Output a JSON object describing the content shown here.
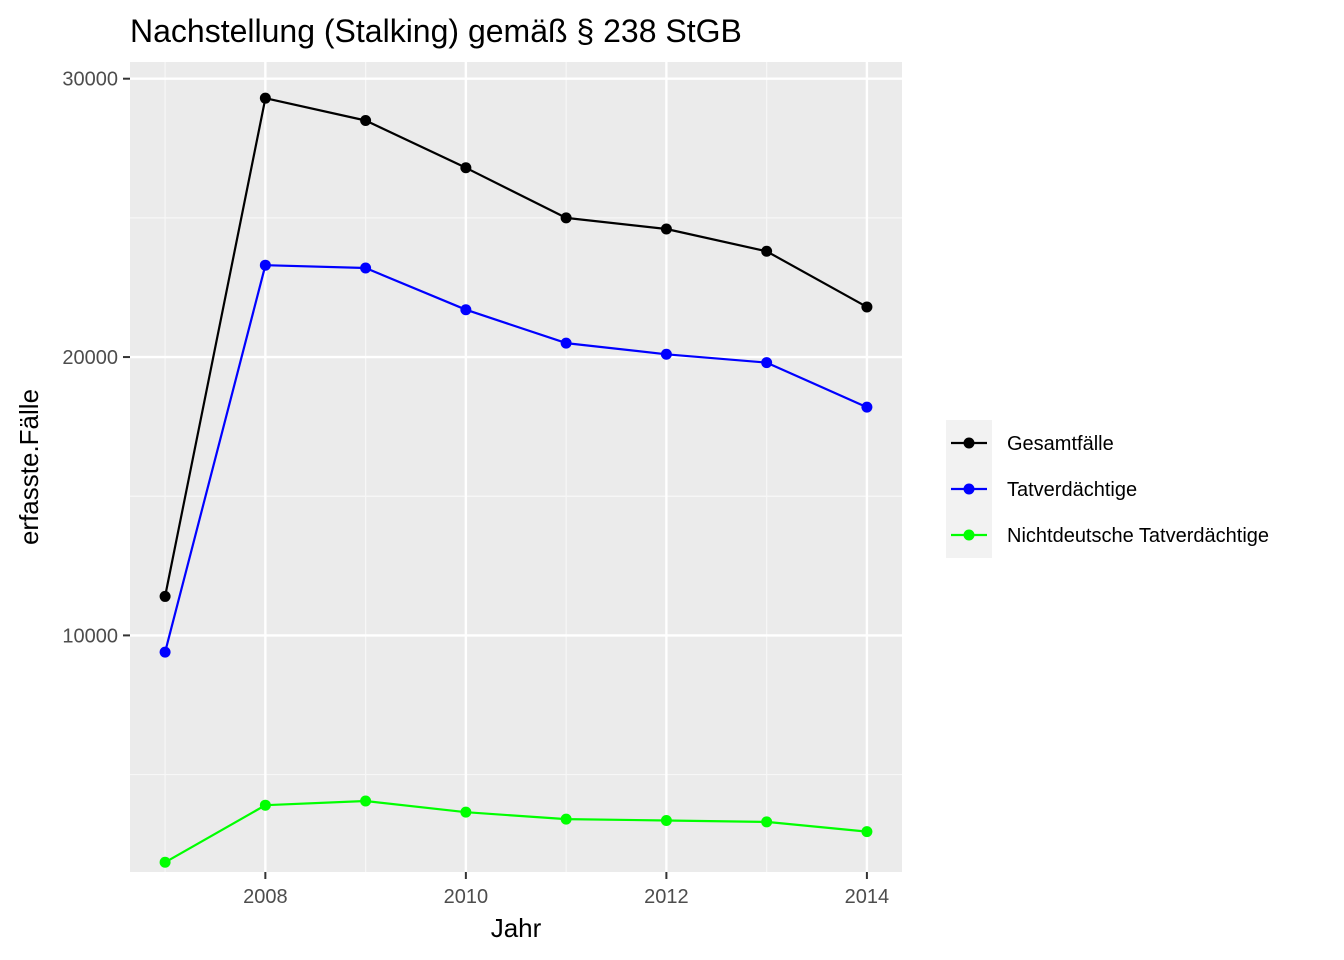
{
  "chart_data": {
    "type": "line",
    "title": "Nachstellung (Stalking) gemäß § 238 StGB",
    "xlabel": "Jahr",
    "ylabel": "erfasste.Fälle",
    "x": [
      2007,
      2008,
      2009,
      2010,
      2011,
      2012,
      2013,
      2014
    ],
    "xlim": [
      2006.65,
      2014.35
    ],
    "ylim": [
      1500,
      30600
    ],
    "x_ticks": [
      2008,
      2010,
      2012,
      2014
    ],
    "x_tick_labels": [
      "2008",
      "2010",
      "2012",
      "2014"
    ],
    "y_ticks": [
      10000,
      20000,
      30000
    ],
    "y_tick_labels": [
      "10000",
      "20000",
      "30000"
    ],
    "grid": true,
    "legend_position": "right",
    "series": [
      {
        "name": "Gesamtfälle",
        "color": "#000000",
        "values": [
          11400,
          29300,
          28500,
          26800,
          25000,
          24600,
          23800,
          21800
        ]
      },
      {
        "name": "Tatverdächtige",
        "color": "#0000ff",
        "values": [
          9400,
          23300,
          23200,
          21700,
          20500,
          20100,
          19800,
          18200
        ]
      },
      {
        "name": "Nichtdeutsche Tatverdächtige",
        "color": "#00ff00",
        "values": [
          1850,
          3900,
          4050,
          3650,
          3400,
          3350,
          3300,
          2950
        ]
      }
    ]
  }
}
